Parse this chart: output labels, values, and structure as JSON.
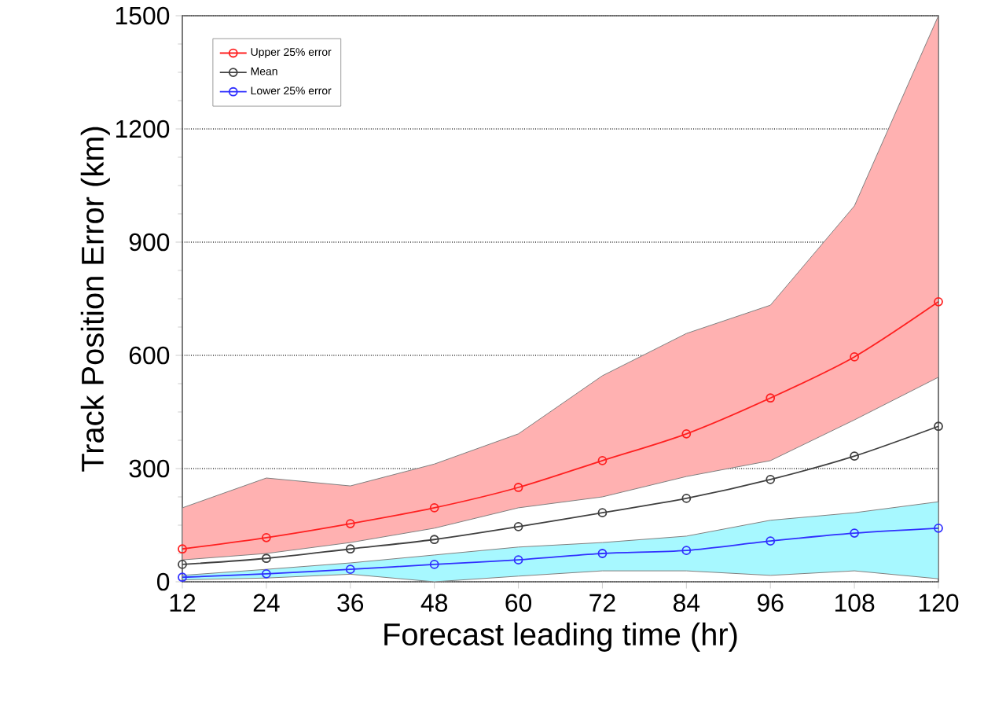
{
  "chart_data": {
    "type": "line",
    "xlabel": "Forecast leading time (hr)",
    "ylabel": "Track Position Error (km)",
    "x": [
      12,
      24,
      36,
      48,
      60,
      72,
      84,
      96,
      108,
      120
    ],
    "series": [
      {
        "name": "Upper 25% error",
        "color": "#ff2020",
        "values": [
          87,
          117,
          154,
          196,
          250,
          321,
          392,
          487,
          596,
          742
        ],
        "lower": [
          58,
          75,
          104,
          142,
          196,
          225,
          279,
          321,
          429,
          542
        ],
        "upper": [
          196,
          275,
          254,
          312,
          392,
          546,
          658,
          733,
          996,
          1500
        ]
      },
      {
        "name": "Mean",
        "color": "#404040",
        "values": [
          46,
          62,
          87,
          112,
          146,
          183,
          221,
          271,
          333,
          412
        ]
      },
      {
        "name": "Lower 25% error",
        "color": "#3030ff",
        "values": [
          12,
          21,
          33,
          46,
          58,
          75,
          83,
          108,
          129,
          142
        ],
        "lower": [
          5,
          10,
          20,
          0,
          15,
          29,
          29,
          17,
          29,
          8
        ],
        "upper": [
          17,
          33,
          50,
          71,
          92,
          104,
          121,
          163,
          183,
          212
        ]
      }
    ],
    "xlim": [
      12,
      120
    ],
    "ylim": [
      0,
      1500
    ],
    "xticks": [
      12,
      24,
      36,
      48,
      60,
      72,
      84,
      96,
      108,
      120
    ],
    "yticks": [
      0,
      300,
      600,
      900,
      1200,
      1500
    ],
    "grid": "y",
    "legend": "top left",
    "marker": "circle",
    "line_style": "solid"
  }
}
